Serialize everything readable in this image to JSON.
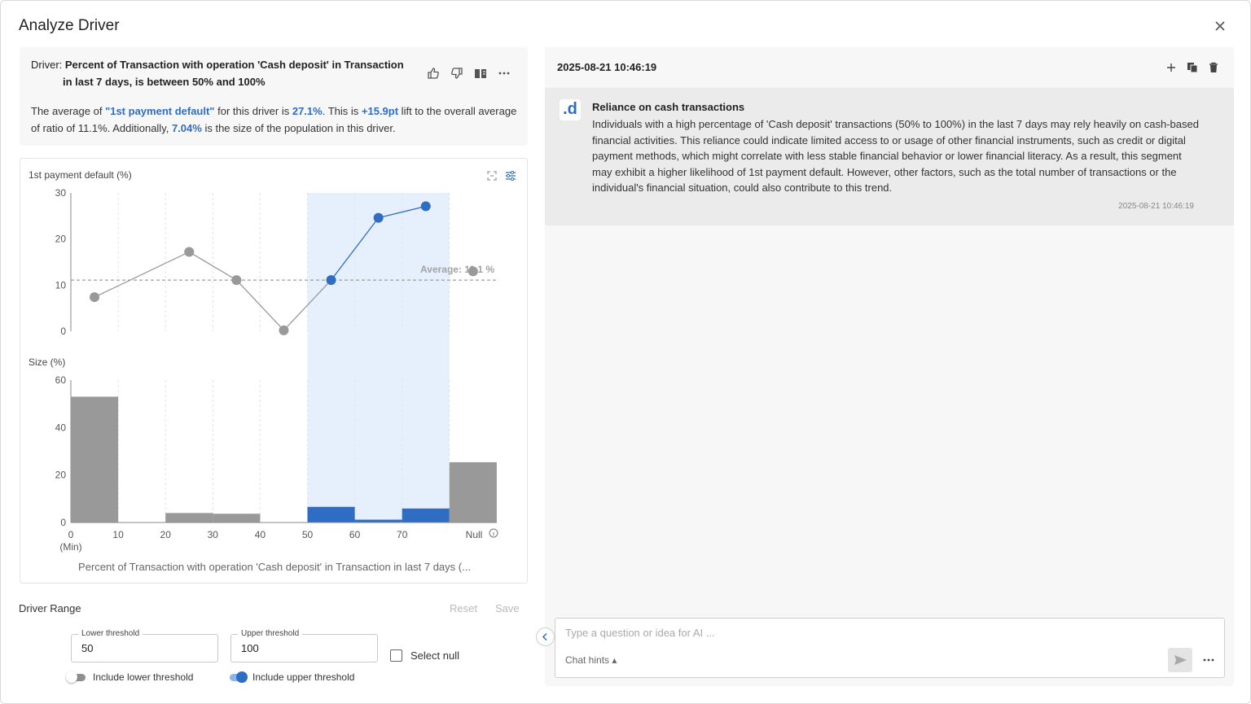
{
  "dialog": {
    "title": "Analyze Driver"
  },
  "driver": {
    "prefix": "Driver: ",
    "title_line1": "Percent of Transaction with operation 'Cash deposit' in Transaction",
    "title_line2": "in last 7 days, is between 50% and 100%",
    "desc": {
      "p1": "The average of ",
      "metric": "\"1st payment default\"",
      "p2": " for this driver is ",
      "avg": "27.1%",
      "p3": ". This is ",
      "lift": "+15.9pt",
      "p4": " lift to the overall average of ratio of 11.1%. Additionally, ",
      "size": "7.04%",
      "p5": " is the size of the population in this driver."
    }
  },
  "chart_data": [
    {
      "type": "line",
      "ylabel": "1st payment default (%)",
      "ylim": [
        0,
        30
      ],
      "yticks": [
        "30",
        "20",
        "10",
        "0"
      ],
      "x": [
        5,
        25,
        35,
        45,
        55,
        65,
        75,
        "Null"
      ],
      "values": [
        7.4,
        17.2,
        11.1,
        0.2,
        11.1,
        24.6,
        27.1,
        13.0
      ],
      "average_label": "Average: 11.1 %",
      "average": 11.1,
      "highlight_range": [
        50,
        80
      ],
      "colors": {
        "normal": "#999999",
        "highlight": "#2f6cc4",
        "band": "#e6f0fc"
      }
    },
    {
      "type": "bar",
      "ylabel": "Size (%)",
      "ylim": [
        0,
        60
      ],
      "yticks": [
        "60",
        "40",
        "20",
        "0"
      ],
      "categories": [
        "0-10",
        "10-20",
        "20-30",
        "30-40",
        "40-50",
        "50-60",
        "60-70",
        "70-80",
        "Null"
      ],
      "values": [
        53,
        0,
        4,
        3.7,
        0,
        6.6,
        1.2,
        5.9,
        25.4
      ],
      "highlighted": [
        false,
        false,
        false,
        false,
        false,
        true,
        true,
        true,
        false
      ],
      "xticks": [
        "0",
        "10",
        "20",
        "30",
        "40",
        "50",
        "60",
        "70",
        "Null"
      ],
      "xtick_min_label": "(Min)",
      "xlabel": "Percent of Transaction with operation 'Cash deposit' in Transaction in last 7 days (..."
    }
  ],
  "range": {
    "label": "Driver Range",
    "reset": "Reset",
    "save": "Save",
    "lower_label": "Lower threshold",
    "lower_value": "50",
    "upper_label": "Upper threshold",
    "upper_value": "100",
    "select_null": "Select null",
    "include_lower": "Include lower threshold",
    "include_upper": "Include upper threshold",
    "include_lower_on": false,
    "include_upper_on": true
  },
  "chat": {
    "session_time": "2025-08-21 10:46:19",
    "avatar": ".d",
    "message_title": "Reliance on cash transactions",
    "message_body": "Individuals with a high percentage of 'Cash deposit' transactions (50% to 100%) in the last 7 days may rely heavily on cash-based financial activities. This reliance could indicate limited access to or usage of other financial instruments, such as credit or digital payment methods, which might correlate with less stable financial behavior or lower financial literacy. As a result, this segment may exhibit a higher likelihood of 1st payment default. However, other factors, such as the total number of transactions or the individual's financial situation, could also contribute to this trend.",
    "message_time": "2025-08-21 10:46:19",
    "input_placeholder": "Type a question or idea for AI ...",
    "hints_label": "Chat hints ▴"
  }
}
